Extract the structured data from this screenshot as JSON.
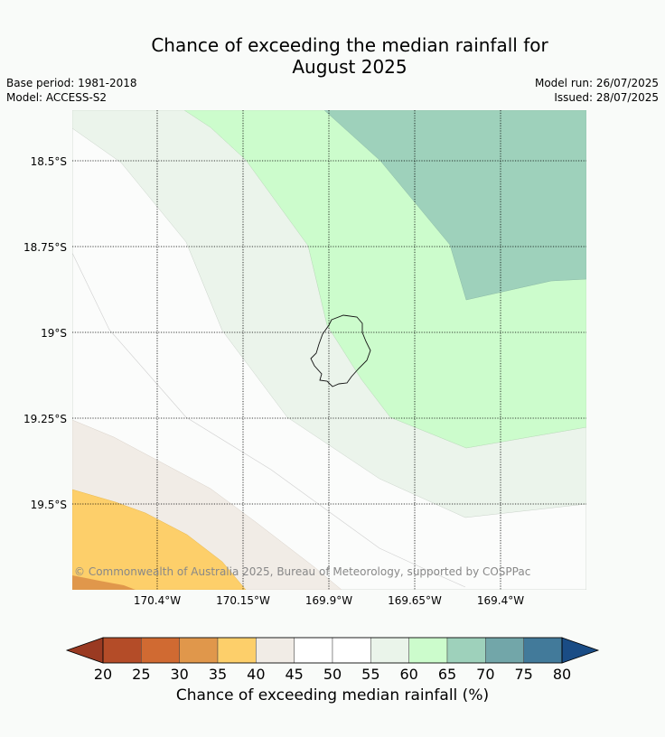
{
  "title_line1": "Chance of exceeding the median rainfall for",
  "title_line2": "August 2025",
  "meta": {
    "base_period": "Base period: 1981-2018",
    "model": "Model: ACCESS-S2",
    "model_run": "Model run: 26/07/2025",
    "issued": "Issued: 28/07/2025"
  },
  "map": {
    "lat_labels": [
      "18.5°S",
      "18.75°S",
      "19°S",
      "19.25°S",
      "19.5°S"
    ],
    "lon_labels": [
      "170.4°W",
      "170.15°W",
      "169.9°W",
      "169.65°W",
      "169.4°W"
    ],
    "copyright": "© Commonwealth of Australia 2025, Bureau of Meteorology, supported by COSPPac",
    "feature": "island-outline"
  },
  "legend": {
    "title": "Chance of exceeding median rainfall (%)",
    "ticks": [
      "20",
      "25",
      "30",
      "35",
      "40",
      "45",
      "50",
      "55",
      "60",
      "65",
      "70",
      "75",
      "80"
    ],
    "colors": [
      "#9a3a22",
      "#b44c28",
      "#d06a32",
      "#e0974b",
      "#fdcf6a",
      "#f1ece6",
      "#ffffff",
      "#ffffff",
      "#eaf4ea",
      "#ccfccc",
      "#9ed1bb",
      "#72a6a9",
      "#427a9a",
      "#1a4c85"
    ]
  }
}
